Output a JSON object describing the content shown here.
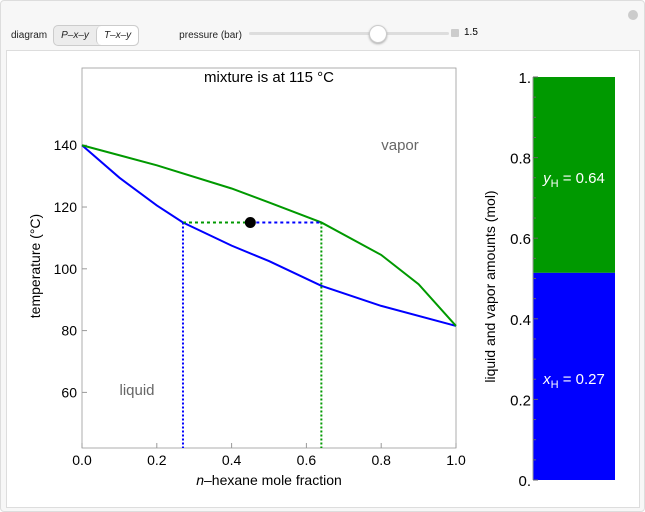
{
  "controls": {
    "diagram_label": "diagram",
    "options": [
      "P–x–y",
      "T–x–y"
    ],
    "selected": "T–x–y",
    "pressure_label": "pressure (bar)",
    "pressure_value": "1.5",
    "pressure_min": 0.5,
    "pressure_max": 3,
    "pressure_fraction": 0.64
  },
  "chart_data": [
    {
      "type": "line",
      "title": "mixture is at 115 °C",
      "xlabel": "n–hexane mole fraction",
      "ylabel": "temperature (°C)",
      "xlim": [
        0,
        1
      ],
      "ylim": [
        42,
        165
      ],
      "xticks": [
        "0.0",
        "0.2",
        "0.4",
        "0.6",
        "0.8",
        "1.0"
      ],
      "yticks": [
        "60",
        "80",
        "100",
        "120",
        "140"
      ],
      "series": [
        {
          "color": "#0000ff",
          "x": [
            0,
            0.1,
            0.2,
            0.27,
            0.4,
            0.5,
            0.64,
            0.8,
            1.0
          ],
          "y": [
            140,
            129.5,
            120.5,
            115,
            107.5,
            102.5,
            94.5,
            88,
            81.5
          ]
        },
        {
          "color": "#009900",
          "x": [
            0,
            0.2,
            0.4,
            0.5,
            0.64,
            0.8,
            0.9,
            1.0
          ],
          "y": [
            140,
            133.5,
            126,
            121.5,
            115,
            104.5,
            95,
            81.5
          ]
        }
      ],
      "tie_line": {
        "T": 115,
        "x_liquid": 0.27,
        "y_vapor": 0.64,
        "z": 0.45
      },
      "annotations": {
        "vapor": "vapor",
        "liquid": "liquid"
      }
    },
    {
      "type": "bar",
      "ylabel": "liquid and vapor amounts (mol)",
      "ylim": [
        0,
        1
      ],
      "yticks": [
        "0.",
        "0.2",
        "0.4",
        "0.6",
        "0.8",
        "1."
      ],
      "liquid_amount": 0.514,
      "vapor_amount": 0.486,
      "liquid_color": "#0000ff",
      "vapor_color": "#009900",
      "liquid_label": {
        "var": "x",
        "sub": "H",
        "text": " = 0.27"
      },
      "vapor_label": {
        "var": "y",
        "sub": "H",
        "text": " = 0.64"
      }
    }
  ]
}
